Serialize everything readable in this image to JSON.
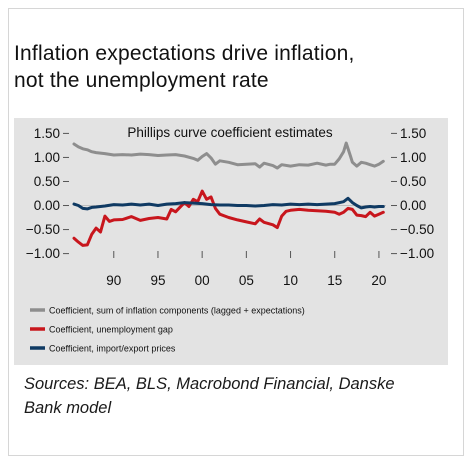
{
  "title": {
    "line1": "Inflation expectations  drive inflation,",
    "line2": "not the unemployment  rate"
  },
  "sources": {
    "line1": "Sources: BEA, BLS, Macrobond Financial, Danske",
    "line2": "Bank model"
  },
  "chart_data": {
    "type": "line",
    "title": "Phillips curve coefficient estimates",
    "xlabel": "",
    "ylabel": "",
    "xlim": [
      1985.5,
      2020.8
    ],
    "ylim": [
      -1.05,
      1.55
    ],
    "x_ticks": [
      1990,
      1995,
      2000,
      2005,
      2010,
      2015,
      2020
    ],
    "x_tick_labels": [
      "90",
      "95",
      "00",
      "05",
      "10",
      "15",
      "20"
    ],
    "y_ticks": [
      1.5,
      1.0,
      0.5,
      0.0,
      -0.5,
      -1.0
    ],
    "y_tick_labels_left": [
      "1.50",
      "1.00",
      "0.50",
      "0.00",
      "−0.50",
      "−1.00"
    ],
    "y_tick_labels_right": [
      "1.50",
      "1.00",
      "0.50",
      "0.00",
      "−0.50",
      "−1.00"
    ],
    "grid": false,
    "legend_position": "bottom",
    "series": [
      {
        "name": "Coefficient, sum of inflation components (lagged + expectations)",
        "color": "#8e8e8e",
        "points": [
          [
            1985.5,
            1.28
          ],
          [
            1986,
            1.22
          ],
          [
            1986.5,
            1.18
          ],
          [
            1987,
            1.16
          ],
          [
            1987.5,
            1.12
          ],
          [
            1988,
            1.1
          ],
          [
            1989,
            1.08
          ],
          [
            1990,
            1.05
          ],
          [
            1991,
            1.06
          ],
          [
            1992,
            1.05
          ],
          [
            1993,
            1.07
          ],
          [
            1994,
            1.06
          ],
          [
            1995,
            1.04
          ],
          [
            1996,
            1.05
          ],
          [
            1997,
            1.06
          ],
          [
            1998,
            1.03
          ],
          [
            1999,
            0.98
          ],
          [
            1999.5,
            0.94
          ],
          [
            2000,
            1.02
          ],
          [
            2000.5,
            1.08
          ],
          [
            2001,
            0.99
          ],
          [
            2001.5,
            0.86
          ],
          [
            2002,
            0.93
          ],
          [
            2003,
            0.9
          ],
          [
            2004,
            0.85
          ],
          [
            2005,
            0.86
          ],
          [
            2006,
            0.87
          ],
          [
            2006.5,
            0.8
          ],
          [
            2007,
            0.88
          ],
          [
            2008,
            0.83
          ],
          [
            2008.5,
            0.78
          ],
          [
            2009,
            0.85
          ],
          [
            2010,
            0.82
          ],
          [
            2011,
            0.85
          ],
          [
            2012,
            0.84
          ],
          [
            2013,
            0.88
          ],
          [
            2014,
            0.84
          ],
          [
            2014.5,
            0.86
          ],
          [
            2015,
            0.86
          ],
          [
            2015.5,
            0.97
          ],
          [
            2016,
            1.12
          ],
          [
            2016.3,
            1.3
          ],
          [
            2016.8,
            1.02
          ],
          [
            2017,
            0.9
          ],
          [
            2017.5,
            0.82
          ],
          [
            2018,
            0.9
          ],
          [
            2018.5,
            0.88
          ],
          [
            2019,
            0.85
          ],
          [
            2019.5,
            0.82
          ],
          [
            2020,
            0.86
          ],
          [
            2020.5,
            0.92
          ]
        ]
      },
      {
        "name": "Coefficient, unemployment gap",
        "color": "#c8161d",
        "points": [
          [
            1985.5,
            -0.68
          ],
          [
            1986,
            -0.76
          ],
          [
            1986.5,
            -0.83
          ],
          [
            1987,
            -0.82
          ],
          [
            1987.5,
            -0.6
          ],
          [
            1988,
            -0.47
          ],
          [
            1988.5,
            -0.55
          ],
          [
            1989,
            -0.22
          ],
          [
            1989.5,
            -0.33
          ],
          [
            1990,
            -0.3
          ],
          [
            1991,
            -0.29
          ],
          [
            1992,
            -0.23
          ],
          [
            1993,
            -0.31
          ],
          [
            1994,
            -0.27
          ],
          [
            1995,
            -0.25
          ],
          [
            1996,
            -0.28
          ],
          [
            1996.5,
            -0.08
          ],
          [
            1997,
            -0.13
          ],
          [
            1998,
            0.06
          ],
          [
            1998.5,
            -0.02
          ],
          [
            1999,
            0.13
          ],
          [
            1999.5,
            0.08
          ],
          [
            2000,
            0.3
          ],
          [
            2000.5,
            0.13
          ],
          [
            2001,
            0.18
          ],
          [
            2001.5,
            -0.06
          ],
          [
            2002,
            -0.18
          ],
          [
            2003,
            -0.25
          ],
          [
            2004,
            -0.3
          ],
          [
            2005,
            -0.34
          ],
          [
            2006,
            -0.38
          ],
          [
            2006.5,
            -0.28
          ],
          [
            2007,
            -0.35
          ],
          [
            2008,
            -0.4
          ],
          [
            2008.5,
            -0.46
          ],
          [
            2009,
            -0.22
          ],
          [
            2009.5,
            -0.12
          ],
          [
            2010,
            -0.1
          ],
          [
            2011,
            -0.08
          ],
          [
            2012,
            -0.1
          ],
          [
            2013,
            -0.11
          ],
          [
            2014,
            -0.12
          ],
          [
            2015,
            -0.14
          ],
          [
            2015.5,
            -0.18
          ],
          [
            2016,
            -0.14
          ],
          [
            2016.5,
            -0.06
          ],
          [
            2017,
            -0.08
          ],
          [
            2017.5,
            -0.2
          ],
          [
            2018,
            -0.21
          ],
          [
            2018.5,
            -0.23
          ],
          [
            2019,
            -0.14
          ],
          [
            2019.5,
            -0.22
          ],
          [
            2020,
            -0.18
          ],
          [
            2020.5,
            -0.14
          ]
        ]
      },
      {
        "name": "Coefficient, import/export prices",
        "color": "#0f3a63",
        "points": [
          [
            1985.5,
            0.03
          ],
          [
            1986,
            0.0
          ],
          [
            1986.5,
            -0.06
          ],
          [
            1987,
            -0.07
          ],
          [
            1987.5,
            -0.04
          ],
          [
            1988,
            -0.03
          ],
          [
            1989,
            -0.01
          ],
          [
            1990,
            0.02
          ],
          [
            1991,
            0.01
          ],
          [
            1992,
            0.03
          ],
          [
            1993,
            0.01
          ],
          [
            1994,
            0.03
          ],
          [
            1995,
            0.0
          ],
          [
            1996,
            0.03
          ],
          [
            1997,
            0.04
          ],
          [
            1998,
            0.06
          ],
          [
            1999,
            0.05
          ],
          [
            2000,
            0.04
          ],
          [
            2001,
            0.02
          ],
          [
            2002,
            0.01
          ],
          [
            2003,
            0.01
          ],
          [
            2004,
            0.0
          ],
          [
            2005,
            0.0
          ],
          [
            2006,
            -0.01
          ],
          [
            2007,
            0.0
          ],
          [
            2008,
            0.02
          ],
          [
            2009,
            0.01
          ],
          [
            2010,
            0.03
          ],
          [
            2011,
            0.02
          ],
          [
            2012,
            0.03
          ],
          [
            2013,
            0.02
          ],
          [
            2014,
            0.03
          ],
          [
            2015,
            0.04
          ],
          [
            2016,
            0.08
          ],
          [
            2016.5,
            0.15
          ],
          [
            2017,
            0.06
          ],
          [
            2017.5,
            0.0
          ],
          [
            2018,
            -0.05
          ],
          [
            2018.5,
            -0.03
          ],
          [
            2019,
            -0.02
          ],
          [
            2019.5,
            -0.03
          ],
          [
            2020,
            -0.02
          ],
          [
            2020.5,
            -0.02
          ]
        ]
      }
    ]
  }
}
